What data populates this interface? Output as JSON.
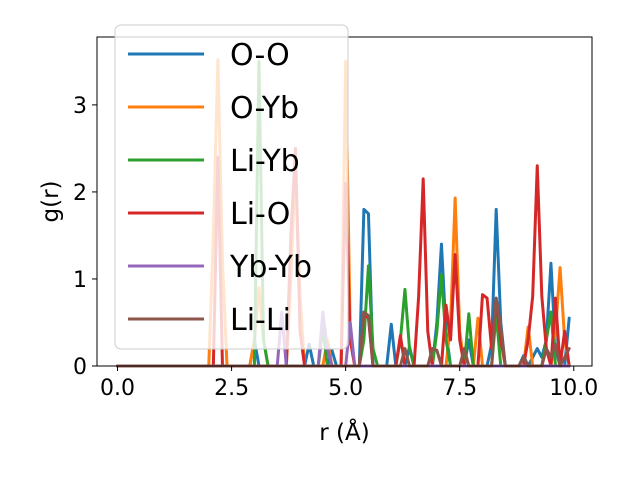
{
  "chart_data": {
    "type": "line",
    "xlabel": "r (Å)",
    "ylabel": "g(r)",
    "xlim": [
      -0.45,
      10.4
    ],
    "ylim": [
      0,
      3.78
    ],
    "xticks": [
      0.0,
      2.5,
      5.0,
      7.5,
      10.0
    ],
    "xtick_labels": [
      "0.0",
      "2.5",
      "5.0",
      "7.5",
      "10.0"
    ],
    "yticks": [
      0,
      1,
      2,
      3
    ],
    "ytick_labels": [
      "0",
      "1",
      "2",
      "3"
    ],
    "grid": false,
    "legend_position": "upper-left",
    "series": [
      {
        "name": "O-O",
        "color": "#1f77b4",
        "points": [
          [
            0,
            0
          ],
          [
            2.9,
            0
          ],
          [
            3.0,
            0.3
          ],
          [
            3.1,
            0
          ],
          [
            4.1,
            0
          ],
          [
            4.2,
            0.25
          ],
          [
            4.3,
            0
          ],
          [
            4.6,
            0
          ],
          [
            4.7,
            0.18
          ],
          [
            4.8,
            0
          ],
          [
            5.3,
            0
          ],
          [
            5.4,
            1.8
          ],
          [
            5.5,
            1.75
          ],
          [
            5.6,
            0
          ],
          [
            5.9,
            0
          ],
          [
            6.0,
            0.48
          ],
          [
            6.1,
            0
          ],
          [
            6.3,
            0
          ],
          [
            6.4,
            0.22
          ],
          [
            6.5,
            0
          ],
          [
            6.9,
            0
          ],
          [
            7.0,
            0.5
          ],
          [
            7.1,
            1.4
          ],
          [
            7.2,
            0.4
          ],
          [
            7.3,
            0
          ],
          [
            7.6,
            0
          ],
          [
            7.7,
            0.3
          ],
          [
            7.8,
            0
          ],
          [
            8.1,
            0
          ],
          [
            8.2,
            0.25
          ],
          [
            8.3,
            1.8
          ],
          [
            8.4,
            0.5
          ],
          [
            8.5,
            0
          ],
          [
            8.8,
            0
          ],
          [
            8.9,
            0.12
          ],
          [
            9.0,
            0
          ],
          [
            9.2,
            0.2
          ],
          [
            9.3,
            0.1
          ],
          [
            9.4,
            0.3
          ],
          [
            9.5,
            1.18
          ],
          [
            9.6,
            0.2
          ],
          [
            9.7,
            0
          ],
          [
            9.8,
            0
          ],
          [
            9.9,
            0.55
          ]
        ]
      },
      {
        "name": "O-Yb",
        "color": "#ff7f0e",
        "points": [
          [
            0,
            0
          ],
          [
            2.0,
            0
          ],
          [
            2.1,
            1.5
          ],
          [
            2.2,
            3.52
          ],
          [
            2.3,
            1.2
          ],
          [
            2.4,
            0
          ],
          [
            2.9,
            0
          ],
          [
            3.0,
            0.3
          ],
          [
            3.1,
            0.9
          ],
          [
            3.2,
            0.3
          ],
          [
            3.3,
            0
          ],
          [
            3.7,
            0
          ],
          [
            3.8,
            1.0
          ],
          [
            3.9,
            2.3
          ],
          [
            4.0,
            0.8
          ],
          [
            4.1,
            0
          ],
          [
            4.5,
            0
          ],
          [
            4.6,
            0.3
          ],
          [
            4.7,
            0
          ],
          [
            4.9,
            0
          ],
          [
            5.0,
            3.5
          ],
          [
            5.1,
            0.4
          ],
          [
            5.2,
            0
          ],
          [
            7.2,
            0
          ],
          [
            7.3,
            0.5
          ],
          [
            7.4,
            1.93
          ],
          [
            7.5,
            0.4
          ],
          [
            7.6,
            0
          ],
          [
            7.8,
            0
          ],
          [
            7.9,
            0.55
          ],
          [
            8.0,
            0
          ],
          [
            8.9,
            0
          ],
          [
            9.0,
            0.45
          ],
          [
            9.1,
            0
          ],
          [
            9.5,
            0
          ],
          [
            9.6,
            0.4
          ],
          [
            9.7,
            1.13
          ],
          [
            9.8,
            0.3
          ],
          [
            9.9,
            0
          ]
        ]
      },
      {
        "name": "Li-Yb",
        "color": "#2ca02c",
        "points": [
          [
            0,
            0
          ],
          [
            3.0,
            0
          ],
          [
            3.1,
            3.5
          ],
          [
            3.2,
            0.3
          ],
          [
            3.3,
            0
          ],
          [
            4.4,
            0
          ],
          [
            4.5,
            0.45
          ],
          [
            4.6,
            0
          ],
          [
            5.3,
            0
          ],
          [
            5.4,
            0.3
          ],
          [
            5.5,
            1.15
          ],
          [
            5.6,
            0.2
          ],
          [
            5.7,
            0
          ],
          [
            6.1,
            0
          ],
          [
            6.2,
            0.3
          ],
          [
            6.3,
            0.88
          ],
          [
            6.4,
            0.2
          ],
          [
            6.5,
            0
          ],
          [
            6.9,
            0
          ],
          [
            7.0,
            0.4
          ],
          [
            7.1,
            1.05
          ],
          [
            7.2,
            0.3
          ],
          [
            7.3,
            0
          ],
          [
            7.6,
            0
          ],
          [
            7.7,
            0.6
          ],
          [
            7.8,
            0
          ],
          [
            8.2,
            0
          ],
          [
            8.3,
            0.6
          ],
          [
            8.4,
            0
          ],
          [
            9.3,
            0
          ],
          [
            9.4,
            0.3
          ],
          [
            9.5,
            0.62
          ],
          [
            9.6,
            0
          ],
          [
            9.9,
            0
          ]
        ]
      },
      {
        "name": "Li-O",
        "color": "#d62728",
        "points": [
          [
            0,
            0
          ],
          [
            2.1,
            0
          ],
          [
            2.2,
            2.4
          ],
          [
            2.3,
            0
          ],
          [
            3.7,
            0
          ],
          [
            3.8,
            1.5
          ],
          [
            3.9,
            2.5
          ],
          [
            4.0,
            0.4
          ],
          [
            4.1,
            0
          ],
          [
            4.9,
            0
          ],
          [
            5.0,
            2.1
          ],
          [
            5.1,
            0.3
          ],
          [
            5.2,
            0
          ],
          [
            5.3,
            0
          ],
          [
            5.4,
            0.6
          ],
          [
            5.5,
            0.55
          ],
          [
            5.6,
            0
          ],
          [
            6.1,
            0
          ],
          [
            6.2,
            0.35
          ],
          [
            6.3,
            0
          ],
          [
            6.5,
            0
          ],
          [
            6.6,
            0.8
          ],
          [
            6.7,
            2.15
          ],
          [
            6.8,
            0.4
          ],
          [
            6.9,
            0
          ],
          [
            7.1,
            0
          ],
          [
            7.2,
            0.7
          ],
          [
            7.3,
            0.3
          ],
          [
            7.4,
            1.28
          ],
          [
            7.5,
            0.3
          ],
          [
            7.6,
            0
          ],
          [
            7.9,
            0
          ],
          [
            8.0,
            0.82
          ],
          [
            8.1,
            0.78
          ],
          [
            8.2,
            0.2
          ],
          [
            8.3,
            0.78
          ],
          [
            8.4,
            0.3
          ],
          [
            8.5,
            0
          ],
          [
            8.9,
            0
          ],
          [
            9.0,
            0.3
          ],
          [
            9.1,
            0.8
          ],
          [
            9.2,
            2.3
          ],
          [
            9.3,
            0.8
          ],
          [
            9.4,
            0.2
          ],
          [
            9.5,
            0
          ],
          [
            9.6,
            0.78
          ],
          [
            9.7,
            0
          ],
          [
            9.8,
            0.4
          ],
          [
            9.9,
            0
          ]
        ]
      },
      {
        "name": "Yb-Yb",
        "color": "#9467bd",
        "points": [
          [
            0,
            0
          ],
          [
            3.5,
            0
          ],
          [
            3.6,
            0.62
          ],
          [
            3.7,
            0
          ],
          [
            4.4,
            0
          ],
          [
            4.5,
            0.62
          ],
          [
            4.6,
            0.2
          ],
          [
            4.7,
            0
          ],
          [
            5.0,
            0
          ],
          [
            5.1,
            0.5
          ],
          [
            5.2,
            0
          ],
          [
            9.9,
            0
          ]
        ]
      },
      {
        "name": "Li-Li",
        "color": "#8c564b",
        "points": [
          [
            0,
            0
          ],
          [
            5.3,
            0
          ],
          [
            5.4,
            0.62
          ],
          [
            5.5,
            0.58
          ],
          [
            5.6,
            0
          ],
          [
            6.2,
            0
          ],
          [
            6.3,
            0.2
          ],
          [
            6.4,
            0
          ],
          [
            6.8,
            0
          ],
          [
            6.9,
            0.2
          ],
          [
            7.0,
            0.18
          ],
          [
            7.1,
            0
          ],
          [
            7.5,
            0
          ],
          [
            7.6,
            0.2
          ],
          [
            7.7,
            0
          ],
          [
            8.2,
            0
          ],
          [
            8.3,
            0.78
          ],
          [
            8.4,
            0.45
          ],
          [
            8.5,
            0
          ],
          [
            8.8,
            0
          ],
          [
            8.9,
            0.1
          ],
          [
            9.0,
            0
          ],
          [
            9.3,
            0
          ],
          [
            9.4,
            0.2
          ],
          [
            9.5,
            0.1
          ],
          [
            9.6,
            0.25
          ],
          [
            9.7,
            0
          ],
          [
            9.9,
            0.2
          ]
        ]
      }
    ]
  }
}
